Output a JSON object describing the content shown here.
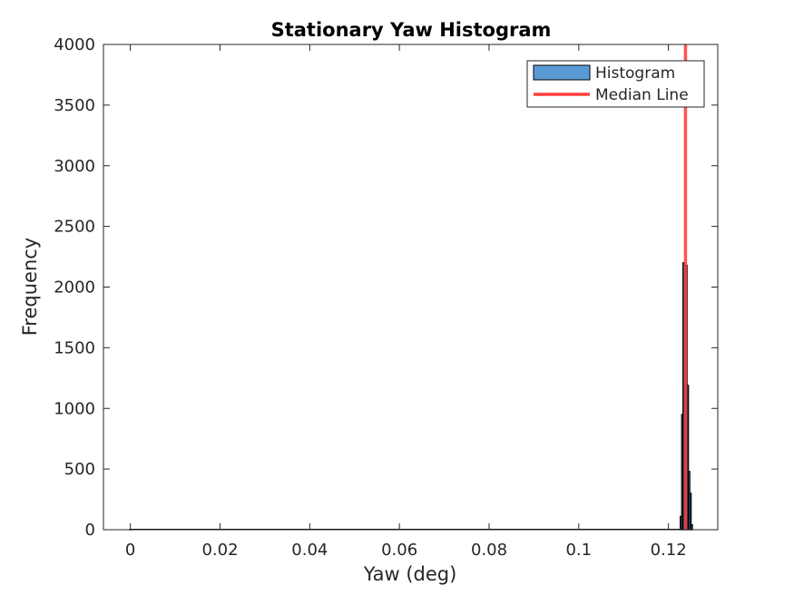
{
  "chart_data": {
    "type": "bar",
    "title": "Stationary Yaw Histogram",
    "xlabel": "Yaw (deg)",
    "ylabel": "Frequency",
    "xlim": [
      -0.006,
      0.131
    ],
    "ylim": [
      0,
      4000
    ],
    "x_ticks": [
      0,
      0.02,
      0.04,
      0.06,
      0.08,
      0.1,
      0.12
    ],
    "x_tick_labels": [
      "0",
      "0.02",
      "0.04",
      "0.06",
      "0.08",
      "0.1",
      "0.12"
    ],
    "y_ticks": [
      0,
      500,
      1000,
      1500,
      2000,
      2500,
      3000,
      3500,
      4000
    ],
    "y_tick_labels": [
      "0",
      "500",
      "1000",
      "1500",
      "2000",
      "2500",
      "3000",
      "3500",
      "4000"
    ],
    "grid": false,
    "legend_position": "top-right",
    "series": [
      {
        "name": "Histogram",
        "kind": "histogram",
        "color": "#5B9BD5",
        "edge_color": "#000000",
        "bins": [
          {
            "x": 0.0,
            "y": 3
          },
          {
            "x": 0.1228,
            "y": 110
          },
          {
            "x": 0.1231,
            "y": 950
          },
          {
            "x": 0.1234,
            "y": 2200
          },
          {
            "x": 0.1237,
            "y": 1900
          },
          {
            "x": 0.124,
            "y": 2180
          },
          {
            "x": 0.1243,
            "y": 1190
          },
          {
            "x": 0.1246,
            "y": 480
          },
          {
            "x": 0.1249,
            "y": 300
          },
          {
            "x": 0.1252,
            "y": 40
          }
        ]
      },
      {
        "name": "Median Line",
        "kind": "vline",
        "color": "#FF4040",
        "x": 0.1238
      }
    ]
  }
}
